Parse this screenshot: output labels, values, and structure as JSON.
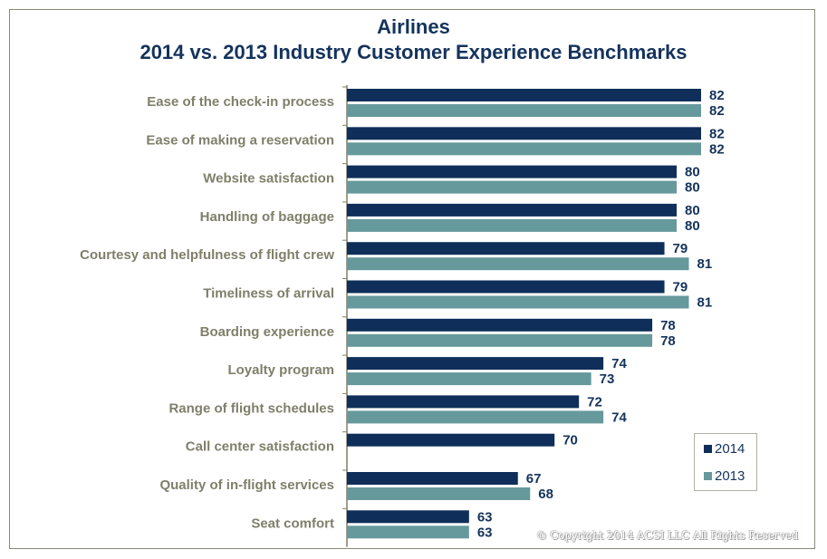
{
  "title": "Airlines",
  "subtitle": "2014 vs. 2013 Industry Customer Experience Benchmarks",
  "copyright": "© Copyright 2014 ACSI LLC All Rights Reserved",
  "colors": {
    "2014": "#0f2f5a",
    "2013": "#66999b",
    "axis": "#7f7f6a"
  },
  "chart_data": {
    "type": "bar",
    "orientation": "horizontal",
    "categories": [
      "Ease of the check-in process",
      "Ease of making a reservation",
      "Website satisfaction",
      "Handling of baggage",
      "Courtesy and helpfulness of flight crew",
      "Timeliness of arrival",
      "Boarding experience",
      "Loyalty program",
      "Range of flight schedules",
      "Call center satisfaction",
      "Quality of in-flight services",
      "Seat comfort"
    ],
    "series": [
      {
        "name": "2014",
        "values": [
          82,
          82,
          80,
          80,
          79,
          79,
          78,
          74,
          72,
          70,
          67,
          63
        ]
      },
      {
        "name": "2013",
        "values": [
          82,
          82,
          80,
          80,
          81,
          81,
          78,
          73,
          74,
          null,
          68,
          63
        ]
      }
    ],
    "xlim": [
      53,
      82
    ],
    "grid": false,
    "legend": "bottom-right",
    "title": "Airlines",
    "subtitle": "2014 vs. 2013 Industry Customer Experience Benchmarks"
  }
}
